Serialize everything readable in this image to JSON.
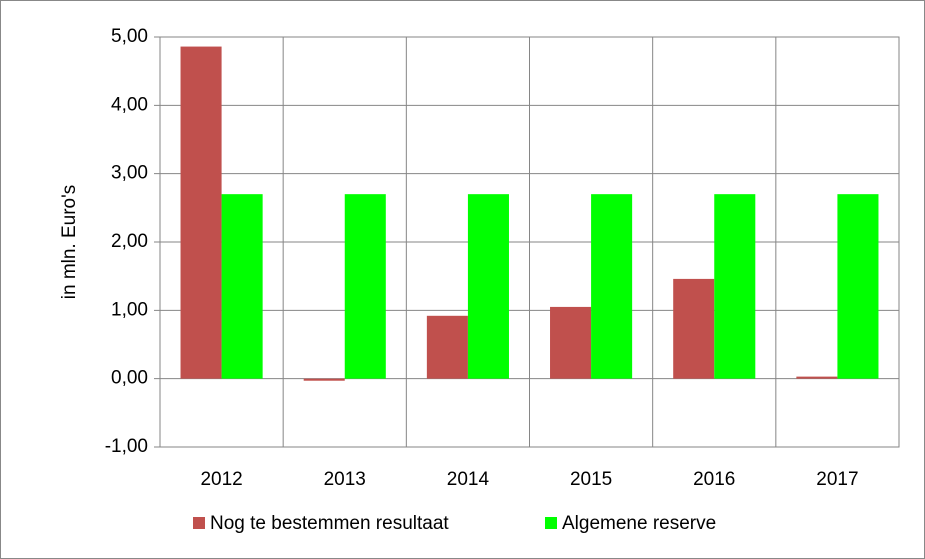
{
  "chart_data": {
    "type": "bar",
    "y_axis_label": "in mln. Euro's",
    "categories": [
      "2012",
      "2013",
      "2014",
      "2015",
      "2016",
      "2017"
    ],
    "series": [
      {
        "name": "Nog te bestemmen resultaat",
        "color": "#c0504d",
        "values": [
          4.86,
          -0.03,
          0.92,
          1.05,
          1.46,
          0.03
        ]
      },
      {
        "name": "Algemene reserve",
        "color": "#00ff00",
        "values": [
          2.7,
          2.7,
          2.7,
          2.7,
          2.7,
          2.7
        ]
      }
    ],
    "ylim": [
      -1,
      5
    ],
    "yticks": [
      {
        "value": -1,
        "label": "-1,00"
      },
      {
        "value": 0,
        "label": "0,00"
      },
      {
        "value": 1,
        "label": "1,00"
      },
      {
        "value": 2,
        "label": "2,00"
      },
      {
        "value": 3,
        "label": "3,00"
      },
      {
        "value": 4,
        "label": "4,00"
      },
      {
        "value": 5,
        "label": "5,00"
      }
    ],
    "grid": true,
    "legend": "bottom"
  }
}
